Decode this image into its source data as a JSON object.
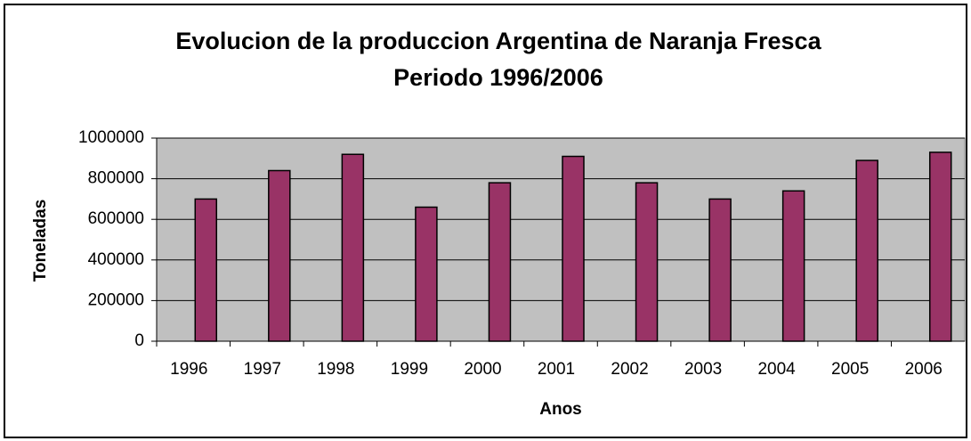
{
  "chart_data": {
    "type": "bar",
    "title": "Evolucion de la produccion Argentina de Naranja Fresca",
    "subtitle": "Periodo 1996/2006",
    "x_label": "Anos",
    "y_label": "Toneladas",
    "categories": [
      "1996",
      "1997",
      "1998",
      "1999",
      "2000",
      "2001",
      "2002",
      "2003",
      "2004",
      "2005",
      "2006"
    ],
    "values": [
      700000,
      840000,
      920000,
      660000,
      780000,
      910000,
      780000,
      700000,
      740000,
      890000,
      930000
    ],
    "color": "#993366",
    "plot_background": "#c0c0c0",
    "ylim": [
      0,
      1000000
    ],
    "yticks": [
      0,
      200000,
      400000,
      600000,
      800000,
      1000000
    ],
    "grid": true
  }
}
